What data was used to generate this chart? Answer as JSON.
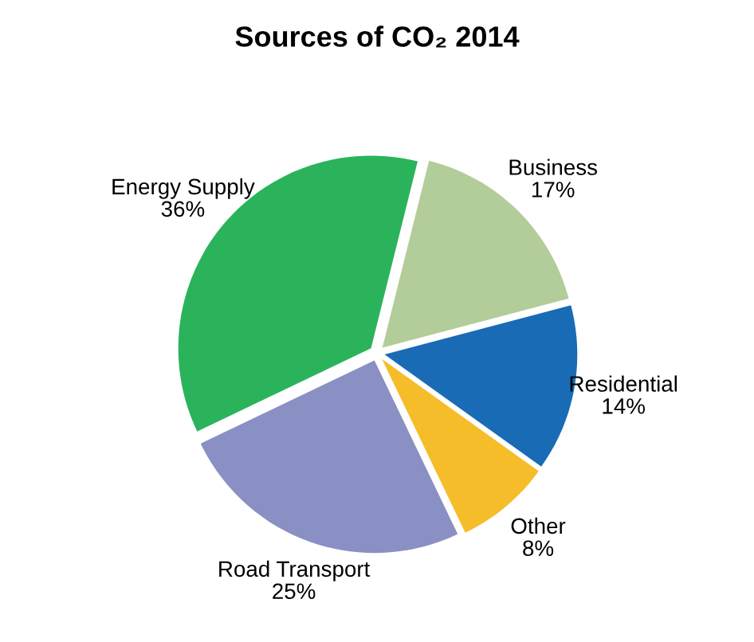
{
  "chart_data": {
    "type": "pie",
    "title": "Sources of CO₂ 2014",
    "categories": [
      "Business",
      "Residential",
      "Other",
      "Road Transport",
      "Energy Supply"
    ],
    "values": [
      17,
      14,
      8,
      25,
      36
    ],
    "value_labels": [
      "17%",
      "14%",
      "8%",
      "25%",
      "36%"
    ],
    "colors": [
      "#b3cd9a",
      "#1a6bb5",
      "#f5bd2a",
      "#8a8fc4",
      "#2bb35c"
    ],
    "legend": false
  }
}
